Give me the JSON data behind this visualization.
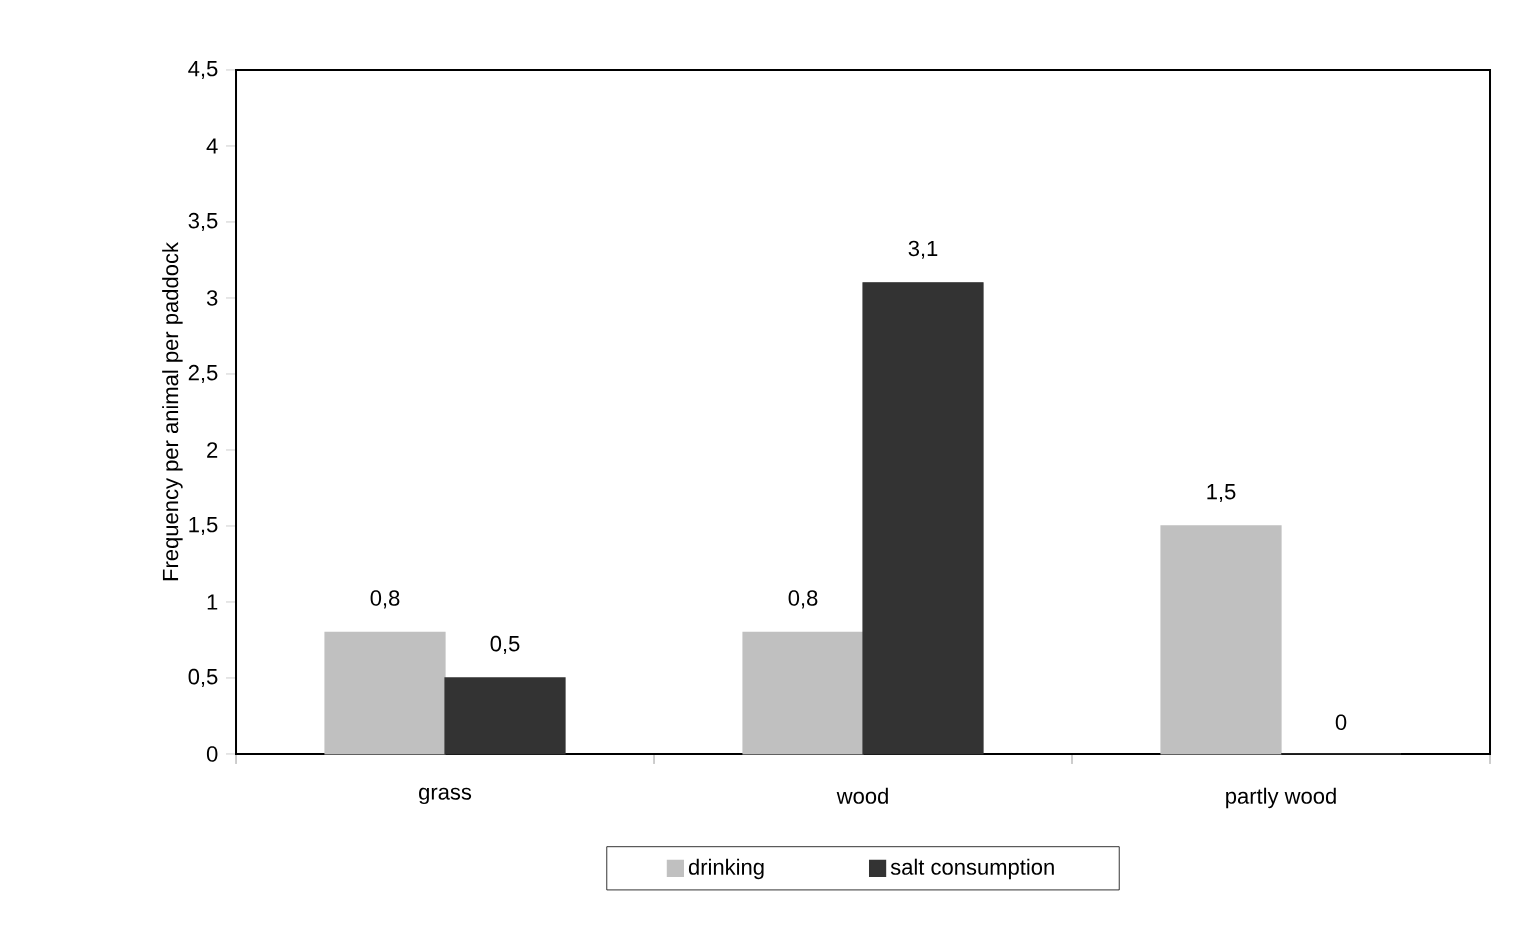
{
  "chart_data": {
    "type": "bar",
    "ylabel": "Frequency per animal per paddock",
    "categories": [
      "grass",
      "wood",
      "partly wood"
    ],
    "series": [
      {
        "name": "drinking",
        "color": "#c0c0c0",
        "values": [
          0.8,
          0.8,
          1.5
        ],
        "value_labels": [
          "0,8",
          "0,8",
          "1,5"
        ]
      },
      {
        "name": "salt consumption",
        "color": "#333333",
        "values": [
          0.5,
          3.1,
          0
        ],
        "value_labels": [
          "0,5",
          "3,1",
          "0"
        ]
      }
    ],
    "ylim": [
      0,
      4.5
    ],
    "yticks": [
      0,
      {
        "value": 0.5,
        "label": "0,5"
      },
      1,
      {
        "value": 1.5,
        "label": "1,5"
      },
      2,
      {
        "value": 2.5,
        "label": "2,5"
      },
      3,
      {
        "value": 3.5,
        "label": "3,5"
      },
      4,
      {
        "value": 4.5,
        "label": "4,5"
      }
    ],
    "grid": false,
    "legend": "bottom"
  }
}
